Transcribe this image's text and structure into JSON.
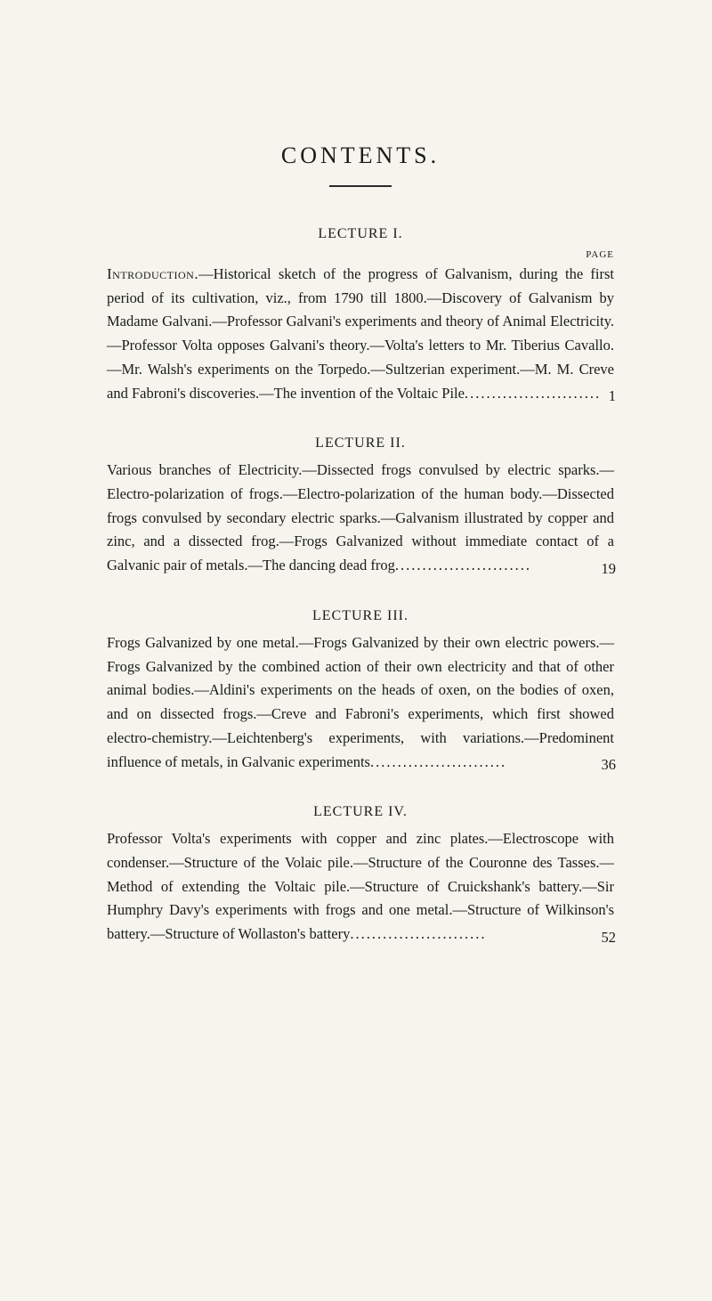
{
  "title": "CONTENTS.",
  "page_label": "PAGE",
  "lectures": [
    {
      "heading": "LECTURE I.",
      "lead": "Introduction.",
      "text": "—Historical sketch of the progress of Galvanism, during the first period of its cultivation, viz., from 1790 till 1800.—Discovery of Galvanism by Madame Galvani.—Professor Galvani's experiments and theory of Animal Electricity.—Professor Volta opposes Galvani's theory.—Volta's letters to Mr. Tiberius Cavallo.—Mr. Walsh's experiments on the Tor­pedo.—Sultzerian experiment.—M. M. Creve and Fabroni's discoveries.—The invention of the Voltaic Pile",
      "page": "1"
    },
    {
      "heading": "LECTURE II.",
      "lead": "",
      "text": "Various branches of Electricity.—Dissected frogs convulsed by electric sparks.—Electro-polarization of frogs.—Electro-polari­zation of the human body.—Dissected frogs convulsed by secondary electric sparks.—Galvanism illustrated by copper and zinc, and a dissected frog.—Frogs Galvanized without immediate contact of a Galvanic pair of metals.—The dancing dead frog",
      "page": "19"
    },
    {
      "heading": "LECTURE III.",
      "lead": "",
      "text": "Frogs Galvanized by one metal.—Frogs Galvanized by their own electric powers.—Frogs Galvanized by the combined action of their own electricity and that of other animal bodies.—Aldini's experiments on the heads of oxen, on the bodies of oxen, and on dissected frogs.—Creve and Fabroni's experiments, which first showed electro-chemistry.—Leichtenberg's experiments, with variations.—Predominent influence of metals, in Galvanic experiments",
      "page": "36"
    },
    {
      "heading": "LECTURE IV.",
      "lead": "",
      "text": "Professor Volta's experiments with copper and zinc plates.—Electro­scope with condenser.—Structure of the Volaic pile.—Structure of the Couronne des Tasses.—Method of extending the Voltaic pile.—Structure of Cruickshank's battery.—Sir Humphry Davy's experiments with frogs and one metal.—Structure of Wilkinson's battery.—Structure of Wollaston's battery",
      "page": "52"
    }
  ]
}
